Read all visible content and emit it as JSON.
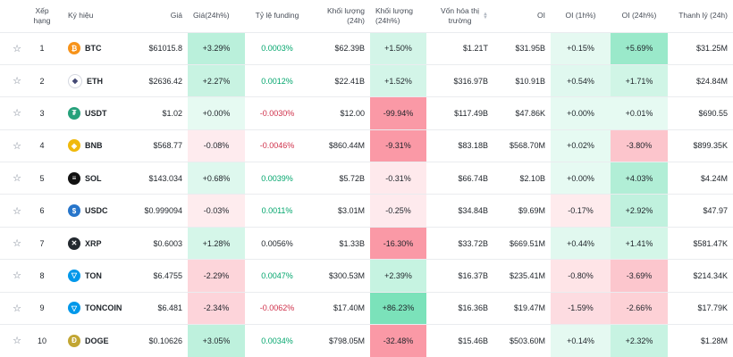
{
  "headers": {
    "rank": "Xếp hạng",
    "symbol": "Ký hiệu",
    "price": "Giá",
    "change24h": "Giá(24h%)",
    "funding": "Tỷ lệ funding",
    "volume": "Khối lượng (24h)",
    "volume_change": "Khối lượng (24h%)",
    "market_cap_line1": "Vốn hóa thị",
    "market_cap_line2": "trường",
    "oi": "OI",
    "oi_1h": "OI (1h%)",
    "oi_24h": "OI (24h%)",
    "liquidation": "Thanh lý (24h)"
  },
  "icons": {
    "star": "star-outline-icon",
    "sort": "sort-icon"
  },
  "rows": [
    {
      "rank": "1",
      "symbol": "BTC",
      "price": "$61015.8",
      "change": "+3.29%",
      "funding": "0.0003%",
      "volume": "$62.39B",
      "volume_change": "+1.50%",
      "market_cap": "$1.21T",
      "oi": "$31.95B",
      "oi_1h": "+0.15%",
      "oi_24h": "+5.69%",
      "liquidation": "$31.25M",
      "coin_color": "#f7931a",
      "coin_glyph": "₿"
    },
    {
      "rank": "2",
      "symbol": "ETH",
      "price": "$2636.42",
      "change": "+2.27%",
      "funding": "0.0012%",
      "volume": "$22.41B",
      "volume_change": "+1.52%",
      "market_cap": "$316.97B",
      "oi": "$10.91B",
      "oi_1h": "+0.54%",
      "oi_24h": "+1.71%",
      "liquidation": "$24.84M",
      "coin_color": "#ffffff",
      "coin_glyph": "◆"
    },
    {
      "rank": "3",
      "symbol": "USDT",
      "price": "$1.02",
      "change": "+0.00%",
      "funding": "-0.0030%",
      "volume": "$12.00",
      "volume_change": "-99.94%",
      "market_cap": "$117.49B",
      "oi": "$47.86K",
      "oi_1h": "+0.00%",
      "oi_24h": "+0.01%",
      "liquidation": "$690.55",
      "coin_color": "#26a17b",
      "coin_glyph": "₮"
    },
    {
      "rank": "4",
      "symbol": "BNB",
      "price": "$568.77",
      "change": "-0.08%",
      "funding": "-0.0046%",
      "volume": "$860.44M",
      "volume_change": "-9.31%",
      "market_cap": "$83.18B",
      "oi": "$568.70M",
      "oi_1h": "+0.02%",
      "oi_24h": "-3.80%",
      "liquidation": "$899.35K",
      "coin_color": "#f0b90b",
      "coin_glyph": "◈"
    },
    {
      "rank": "5",
      "symbol": "SOL",
      "price": "$143.034",
      "change": "+0.68%",
      "funding": "0.0039%",
      "volume": "$5.72B",
      "volume_change": "-0.31%",
      "market_cap": "$66.74B",
      "oi": "$2.10B",
      "oi_1h": "+0.00%",
      "oi_24h": "+4.03%",
      "liquidation": "$4.24M",
      "coin_color": "#111111",
      "coin_glyph": "≡"
    },
    {
      "rank": "6",
      "symbol": "USDC",
      "price": "$0.999094",
      "change": "-0.03%",
      "funding": "0.0011%",
      "volume": "$3.01M",
      "volume_change": "-0.25%",
      "market_cap": "$34.84B",
      "oi": "$9.69M",
      "oi_1h": "-0.17%",
      "oi_24h": "+2.92%",
      "liquidation": "$47.97",
      "coin_color": "#2775ca",
      "coin_glyph": "$"
    },
    {
      "rank": "7",
      "symbol": "XRP",
      "price": "$0.6003",
      "change": "+1.28%",
      "funding": "0.0056%",
      "volume": "$1.33B",
      "volume_change": "-16.30%",
      "market_cap": "$33.72B",
      "oi": "$669.51M",
      "oi_1h": "+0.44%",
      "oi_24h": "+1.41%",
      "liquidation": "$581.47K",
      "coin_color": "#23292f",
      "coin_glyph": "✕"
    },
    {
      "rank": "8",
      "symbol": "TON",
      "price": "$6.4755",
      "change": "-2.29%",
      "funding": "0.0047%",
      "volume": "$300.53M",
      "volume_change": "+2.39%",
      "market_cap": "$16.37B",
      "oi": "$235.41M",
      "oi_1h": "-0.80%",
      "oi_24h": "-3.69%",
      "liquidation": "$214.34K",
      "coin_color": "#0098ea",
      "coin_glyph": "▽"
    },
    {
      "rank": "9",
      "symbol": "TONCOIN",
      "price": "$6.481",
      "change": "-2.34%",
      "funding": "-0.0062%",
      "volume": "$17.40M",
      "volume_change": "+86.23%",
      "market_cap": "$16.36B",
      "oi": "$19.47M",
      "oi_1h": "-1.59%",
      "oi_24h": "-2.66%",
      "liquidation": "$17.79K",
      "coin_color": "#0098ea",
      "coin_glyph": "▽"
    },
    {
      "rank": "10",
      "symbol": "DOGE",
      "price": "$0.10626",
      "change": "+3.05%",
      "funding": "0.0034%",
      "volume": "$798.05M",
      "volume_change": "-32.48%",
      "market_cap": "$15.46B",
      "oi": "$503.60M",
      "oi_1h": "+0.14%",
      "oi_24h": "+2.32%",
      "liquidation": "$1.28M",
      "coin_color": "#c2a633",
      "coin_glyph": "Ð"
    }
  ]
}
